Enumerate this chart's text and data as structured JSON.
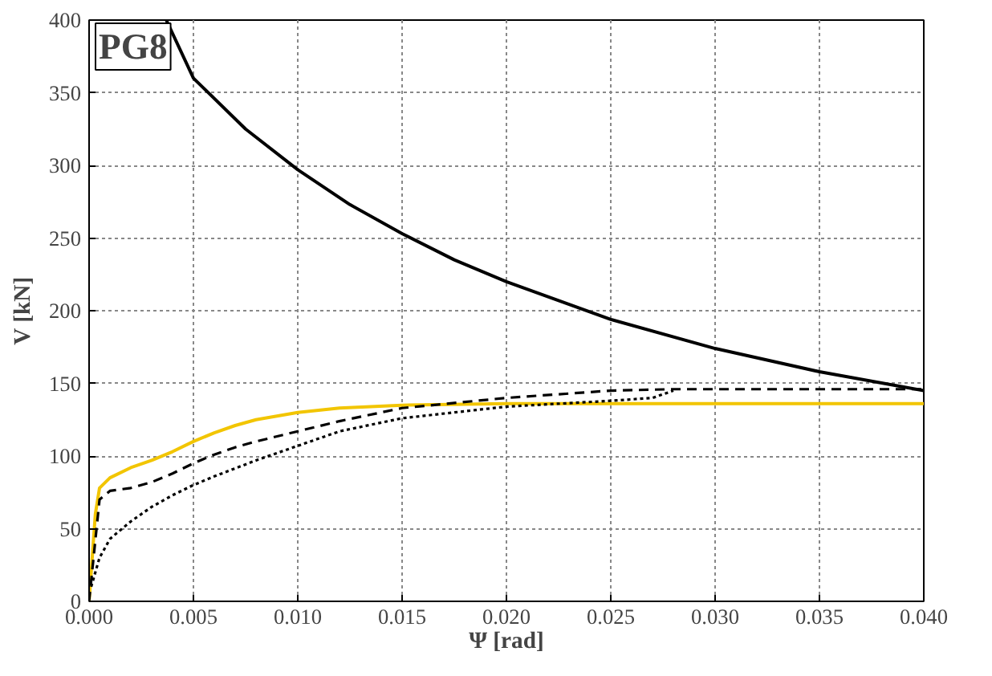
{
  "chart_data": {
    "type": "line",
    "xlabel": "Ψ [rad]",
    "ylabel": "V [kN]",
    "annotations": [
      "PG8"
    ],
    "xlim": [
      0,
      0.04
    ],
    "ylim": [
      0,
      400
    ],
    "xticks": [
      {
        "value": 0,
        "label": "0.000"
      },
      {
        "value": 0.005,
        "label": "0.005"
      },
      {
        "value": 0.01,
        "label": "0.010"
      },
      {
        "value": 0.015,
        "label": "0.015"
      },
      {
        "value": 0.02,
        "label": "0.020"
      },
      {
        "value": 0.025,
        "label": "0.025"
      },
      {
        "value": 0.03,
        "label": "0.030"
      },
      {
        "value": 0.035,
        "label": "0.035"
      },
      {
        "value": 0.04,
        "label": "0.040"
      }
    ],
    "yticks": [
      0,
      50,
      100,
      150,
      200,
      250,
      300,
      350,
      400
    ],
    "grid": true,
    "series": [
      {
        "color": "#000000",
        "line_style": "solid",
        "x": [
          0.0037,
          0.005,
          0.0075,
          0.01,
          0.0125,
          0.015,
          0.0175,
          0.02,
          0.025,
          0.03,
          0.035,
          0.04
        ],
        "values": [
          400,
          360,
          325,
          297,
          273,
          253,
          235,
          220,
          194,
          174,
          158,
          145
        ]
      },
      {
        "color": "#f2c500",
        "line_style": "solid",
        "x": [
          0,
          0.0003,
          0.0005,
          0.001,
          0.002,
          0.003,
          0.004,
          0.005,
          0.006,
          0.007,
          0.008,
          0.01,
          0.012,
          0.015,
          0.02,
          0.04
        ],
        "values": [
          0,
          60,
          78,
          85,
          92,
          97,
          103,
          110,
          116,
          121,
          125,
          130,
          133,
          135,
          136,
          136
        ]
      },
      {
        "color": "#000000",
        "line_style": "dashed",
        "x": [
          0,
          0.0005,
          0.001,
          0.002,
          0.003,
          0.004,
          0.005,
          0.006,
          0.007,
          0.008,
          0.01,
          0.012,
          0.015,
          0.02,
          0.025,
          0.028,
          0.04
        ],
        "values": [
          0,
          70,
          76,
          78,
          82,
          88,
          95,
          101,
          106,
          110,
          117,
          124,
          133,
          140,
          145,
          146,
          146
        ]
      },
      {
        "color": "#000000",
        "line_style": "dotted",
        "x": [
          0.0001,
          0.0005,
          0.001,
          0.002,
          0.003,
          0.004,
          0.005,
          0.006,
          0.008,
          0.01,
          0.012,
          0.015,
          0.02,
          0.025,
          0.027,
          0.028
        ],
        "values": [
          10,
          30,
          43,
          55,
          65,
          73,
          80,
          86,
          97,
          107,
          117,
          126,
          134,
          138,
          140,
          145
        ]
      }
    ]
  }
}
